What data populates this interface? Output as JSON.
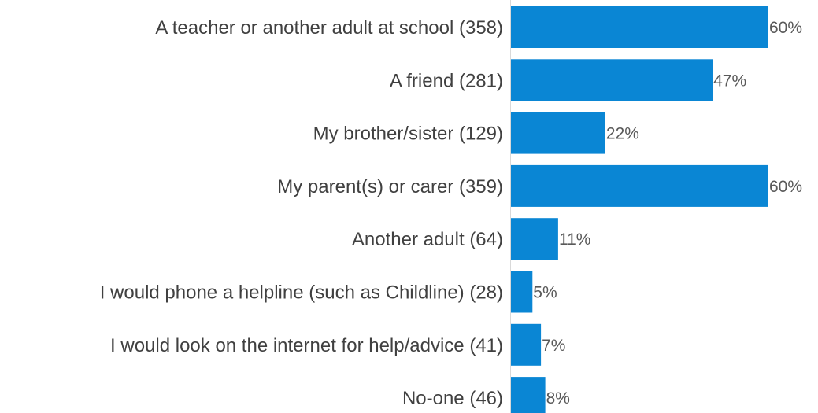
{
  "chart_data": {
    "type": "bar",
    "orientation": "horizontal",
    "categories": [
      "A teacher or another adult at school (358)",
      "A friend (281)",
      "My brother/sister (129)",
      "My parent(s) or carer (359)",
      "Another adult (64)",
      "I would phone a helpline (such as Childline) (28)",
      "I would look on the internet for help/advice (41)",
      "No-one (46)"
    ],
    "values": [
      60,
      47,
      22,
      60,
      11,
      5,
      7,
      8
    ],
    "value_labels": [
      "60%",
      "47%",
      "22%",
      "60%",
      "11%",
      "5%",
      "7%",
      "8%"
    ],
    "unit": "%",
    "xlim": [
      0,
      60
    ],
    "grid": false,
    "legend": "none",
    "bar_color": "#0A86D4"
  }
}
